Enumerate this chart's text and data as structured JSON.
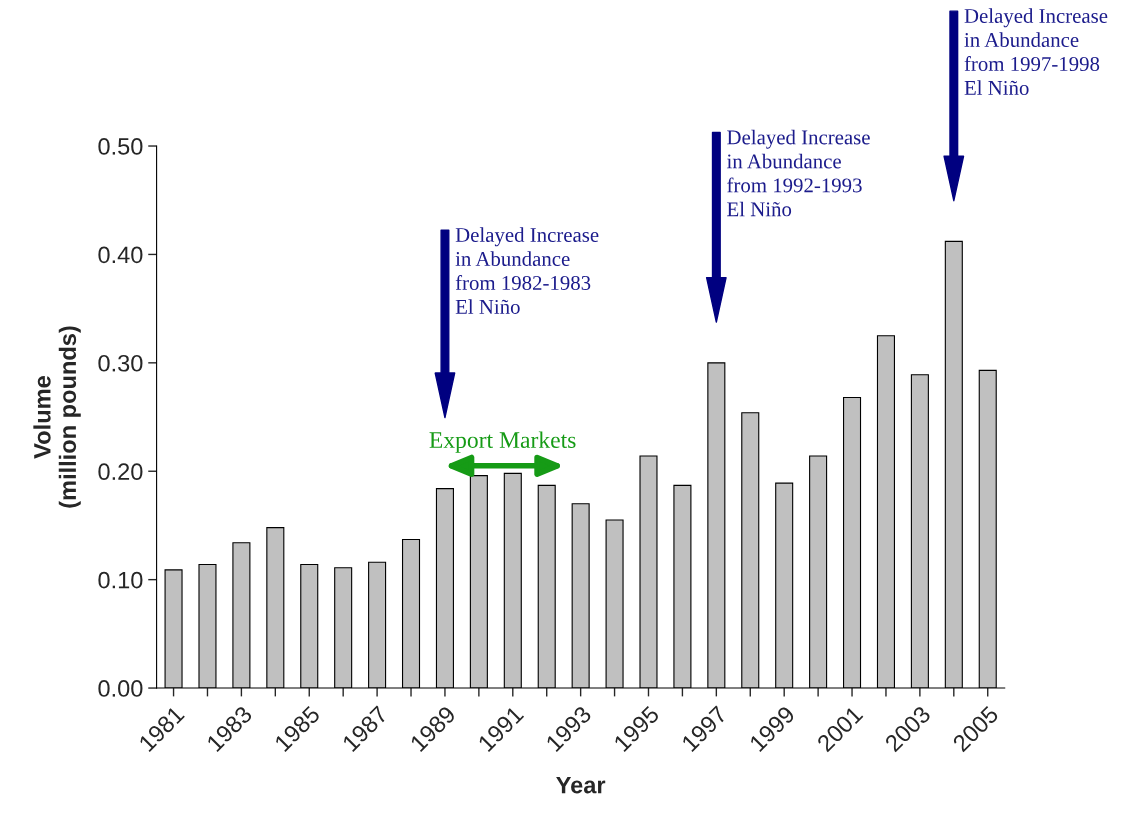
{
  "chart_data": {
    "type": "bar",
    "xlabel": "Year",
    "ylabel": "Volume\n(million pounds)",
    "categories": [
      "1981",
      null,
      "1983",
      null,
      "1985",
      null,
      "1987",
      null,
      "1989",
      null,
      "1991",
      null,
      "1993",
      null,
      "1995",
      null,
      "1997",
      null,
      "1999",
      null,
      "2001",
      null,
      "2003",
      null,
      "2005"
    ],
    "values": [
      0.109,
      0.114,
      0.134,
      0.148,
      0.114,
      0.111,
      0.116,
      0.137,
      0.184,
      0.196,
      0.198,
      0.187,
      0.17,
      0.155,
      0.214,
      0.187,
      0.3,
      0.254,
      0.189,
      0.214,
      0.268,
      0.325,
      0.289,
      0.412,
      0.293
    ],
    "color": "#c0c0c0",
    "ylim": [
      0,
      0.5
    ],
    "yticks": [
      {
        "value": 0,
        "label": "0.00"
      },
      {
        "value": 0.1,
        "label": "0.10"
      },
      {
        "value": 0.2,
        "label": "0.20"
      },
      {
        "value": 0.3,
        "label": "0.30"
      },
      {
        "value": 0.4,
        "label": "0.40"
      },
      {
        "value": 0.5,
        "label": "0.50"
      }
    ],
    "annotations": [
      "Delayed Increase\nin Abundance\nfrom 1982-1983\nEl Niño",
      "Delayed Increase\nin Abundance\nfrom 1992-1993\nEl Niño",
      "Delayed Increase\nin Abundance\nfrom 1997-1998\nEl Niño",
      "Export Markets"
    ],
    "grid": false,
    "legend": false
  }
}
